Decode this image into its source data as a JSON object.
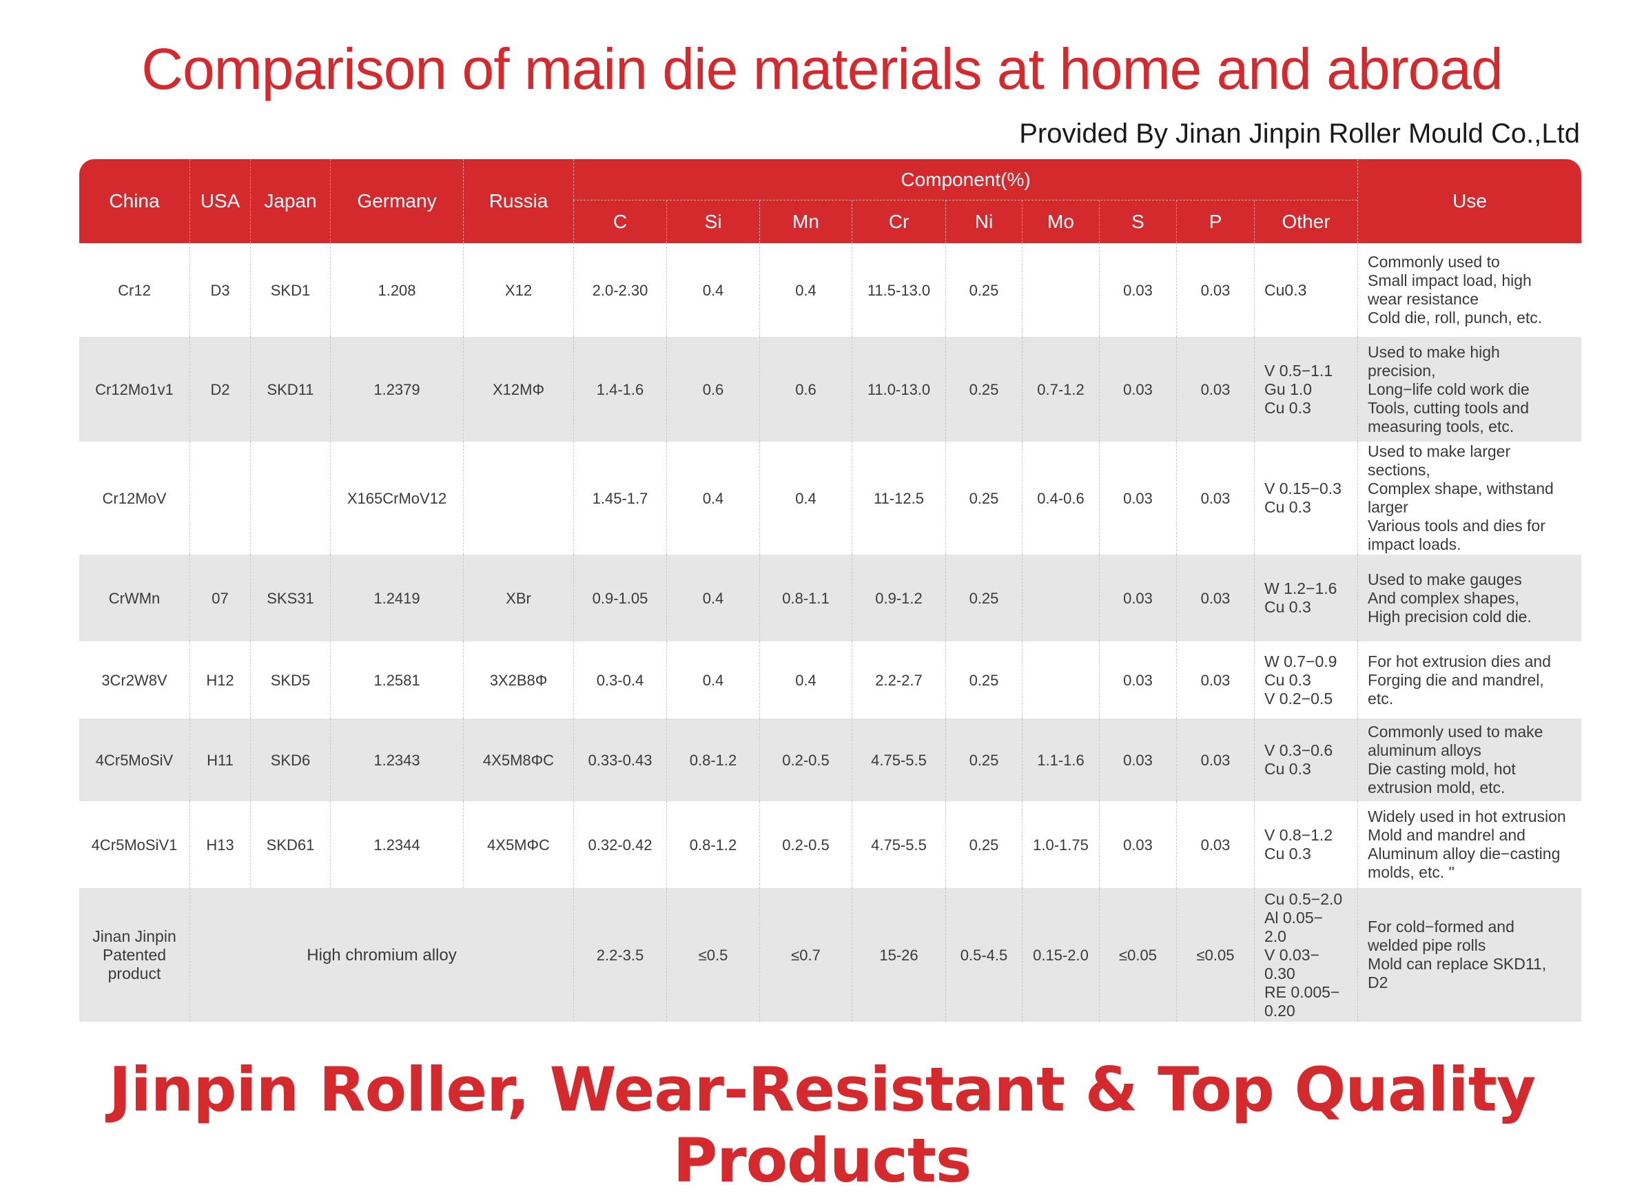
{
  "title": "Comparison of main die materials at home and abroad",
  "provider": "Provided By Jinan Jinpin Roller Mould Co.,Ltd",
  "slogan": "Jinpin Roller, Wear-Resistant & Top Quality Products",
  "colors": {
    "accent": "#d42a2e",
    "row_alt": "#e6e6e6"
  },
  "header": {
    "china": "China",
    "usa": "USA",
    "japan": "Japan",
    "germany": "Germany",
    "russia": "Russia",
    "component": "Component(%)",
    "c": "C",
    "si": "Si",
    "mn": "Mn",
    "cr": "Cr",
    "ni": "Ni",
    "mo": "Mo",
    "s": "S",
    "p": "P",
    "other": "Other",
    "use": "Use"
  },
  "rows": [
    {
      "china": "Cr12",
      "usa": "D3",
      "japan": "SKD1",
      "germany": "1.208",
      "russia": "X12",
      "c": "2.0-2.30",
      "si": "0.4",
      "mn": "0.4",
      "cr": "11.5-13.0",
      "ni": "0.25",
      "mo": "",
      "s": "0.03",
      "p": "0.03",
      "other": [
        "Cu0.3"
      ],
      "use": [
        "Commonly used to",
        "Small impact load, high",
        "wear resistance",
        "Cold die, roll, punch, etc."
      ]
    },
    {
      "china": "Cr12Mo1v1",
      "usa": "D2",
      "japan": "SKD11",
      "germany": "1.2379",
      "russia": "X12MΦ",
      "c": "1.4-1.6",
      "si": "0.6",
      "mn": "0.6",
      "cr": "11.0-13.0",
      "ni": "0.25",
      "mo": "0.7-1.2",
      "s": "0.03",
      "p": "0.03",
      "other": [
        "V 0.5−1.1",
        "Gu 1.0",
        "Cu 0.3"
      ],
      "use": [
        "Used to make high",
        "precision,",
        "Long−life cold work die",
        "Tools, cutting tools and",
        "measuring tools, etc."
      ]
    },
    {
      "china": "Cr12MoV",
      "usa": "",
      "japan": "",
      "germany": "X165CrMoV12",
      "russia": "",
      "c": "1.45-1.7",
      "si": "0.4",
      "mn": "0.4",
      "cr": "11-12.5",
      "ni": "0.25",
      "mo": "0.4-0.6",
      "s": "0.03",
      "p": "0.03",
      "other": [
        "V 0.15−0.3",
        "Cu 0.3"
      ],
      "use": [
        "Used to make larger",
        "sections,",
        "Complex shape, withstand",
        "larger",
        "Various tools and dies for",
        "impact loads."
      ]
    },
    {
      "china": "CrWMn",
      "usa": "07",
      "japan": "SKS31",
      "germany": "1.2419",
      "russia": "XBr",
      "c": "0.9-1.05",
      "si": "0.4",
      "mn": "0.8-1.1",
      "cr": "0.9-1.2",
      "ni": "0.25",
      "mo": "",
      "s": "0.03",
      "p": "0.03",
      "other": [
        "W 1.2−1.6",
        "Cu 0.3"
      ],
      "use": [
        "Used to make gauges",
        "And complex shapes,",
        "High precision cold die."
      ]
    },
    {
      "china": "3Cr2W8V",
      "usa": "H12",
      "japan": "SKD5",
      "germany": "1.2581",
      "russia": "3X2B8Φ",
      "c": "0.3-0.4",
      "si": "0.4",
      "mn": "0.4",
      "cr": "2.2-2.7",
      "ni": "0.25",
      "mo": "",
      "s": "0.03",
      "p": "0.03",
      "other": [
        "W 0.7−0.9",
        "Cu 0.3",
        "V 0.2−0.5"
      ],
      "use": [
        "For hot extrusion dies and",
        "Forging die and mandrel,",
        "etc."
      ]
    },
    {
      "china": "4Cr5MoSiV",
      "usa": "H11",
      "japan": "SKD6",
      "germany": "1.2343",
      "russia": "4X5M8ΦC",
      "c": "0.33-0.43",
      "si": "0.8-1.2",
      "mn": "0.2-0.5",
      "cr": "4.75-5.5",
      "ni": "0.25",
      "mo": "1.1-1.6",
      "s": "0.03",
      "p": "0.03",
      "other": [
        "V 0.3−0.6",
        "Cu 0.3"
      ],
      "use": [
        "Commonly used to make",
        "aluminum alloys",
        "Die casting mold, hot",
        "extrusion mold, etc."
      ]
    },
    {
      "china": "4Cr5MoSiV1",
      "usa": "H13",
      "japan": "SKD61",
      "germany": "1.2344",
      "russia": "4X5MΦC",
      "c": "0.32-0.42",
      "si": "0.8-1.2",
      "mn": "0.2-0.5",
      "cr": "4.75-5.5",
      "ni": "0.25",
      "mo": "1.0-1.75",
      "s": "0.03",
      "p": "0.03",
      "other": [
        "V 0.8−1.2",
        "Cu 0.3"
      ],
      "use": [
        "Widely used in hot extrusion",
        "Mold and mandrel and",
        "Aluminum alloy die−casting",
        "molds, etc. \""
      ]
    }
  ],
  "last_row": {
    "china": [
      "Jinan Jinpin",
      "Patented",
      "product"
    ],
    "merged": "High chromium alloy",
    "c": "2.2-3.5",
    "si": "≤0.5",
    "mn": "≤0.7",
    "cr": "15-26",
    "ni": "0.5-4.5",
    "mo": "0.15-2.0",
    "s": "≤0.05",
    "p": "≤0.05",
    "other": [
      "Cu 0.5−2.0",
      "Al 0.05−",
      "2.0",
      "V 0.03−",
      "0.30",
      "RE 0.005−",
      "0.20"
    ],
    "use": [
      "For cold−formed and",
      "welded pipe rolls",
      "Mold can replace SKD11,",
      "D2"
    ]
  }
}
